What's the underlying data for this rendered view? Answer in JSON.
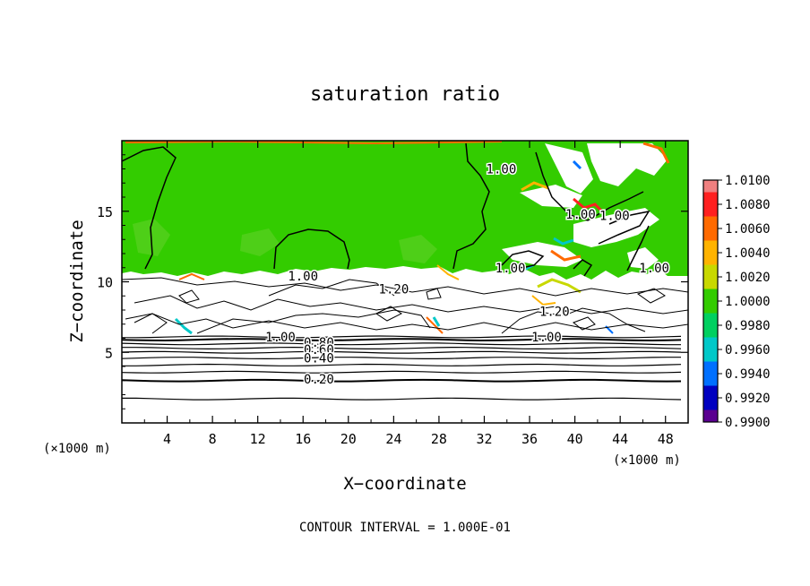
{
  "chart_data": {
    "type": "heatmap",
    "title": "saturation ratio",
    "xlabel": "X−coordinate",
    "ylabel": "Z−coordinate",
    "x_unit_label": "(×1000 m)",
    "z_unit_label": "(×1000 m)",
    "footer": "CONTOUR INTERVAL = 1.000E-01",
    "x_ticks": [
      4,
      8,
      12,
      16,
      20,
      24,
      28,
      32,
      36,
      40,
      44,
      48
    ],
    "x_tick_labels": [
      "4",
      "8",
      "12",
      "16",
      "20",
      "24",
      "28",
      "32",
      "36",
      "40",
      "44",
      "48"
    ],
    "z_ticks": [
      5,
      10,
      15
    ],
    "z_tick_labels": [
      "5",
      "10",
      "15"
    ],
    "xlim": [
      0,
      50
    ],
    "zlim": [
      0,
      20
    ],
    "colorbar": {
      "labels": [
        "1.0100",
        "1.0080",
        "1.0060",
        "1.0040",
        "1.0020",
        "1.0000",
        "0.9980",
        "0.9960",
        "0.9940",
        "0.9920",
        "0.9900"
      ],
      "colors": [
        "#f08080",
        "#ff2020",
        "#ff6a00",
        "#ffb300",
        "#c8d800",
        "#33cc00",
        "#00d060",
        "#00c8c8",
        "#0070ff",
        "#0000c0",
        "#5a0090"
      ]
    },
    "contour_labels": [
      {
        "text": "1.00",
        "x": 33.5,
        "z": 18.0
      },
      {
        "text": "1.00",
        "x": 40.5,
        "z": 14.8
      },
      {
        "text": "1.00",
        "x": 43.5,
        "z": 14.7
      },
      {
        "text": "1.00",
        "x": 34.3,
        "z": 11.0
      },
      {
        "text": "1.00",
        "x": 47.0,
        "z": 11.0
      },
      {
        "text": "1.00",
        "x": 16.0,
        "z": 10.4
      },
      {
        "text": "1.20",
        "x": 24.0,
        "z": 9.5
      },
      {
        "text": "1.20",
        "x": 38.2,
        "z": 7.9
      },
      {
        "text": "1.00",
        "x": 14.0,
        "z": 6.1
      },
      {
        "text": "1.00",
        "x": 37.5,
        "z": 6.1
      },
      {
        "text": "0.80",
        "x": 17.4,
        "z": 5.7
      },
      {
        "text": "0.60",
        "x": 17.4,
        "z": 5.2
      },
      {
        "text": "0.40",
        "x": 17.4,
        "z": 4.6
      },
      {
        "text": "0.20",
        "x": 17.4,
        "z": 3.1
      }
    ],
    "horizontal_contours_z": [
      1.7,
      3.0,
      3.6,
      4.1,
      4.6,
      5.0,
      5.3,
      5.6,
      5.9,
      6.1
    ]
  }
}
